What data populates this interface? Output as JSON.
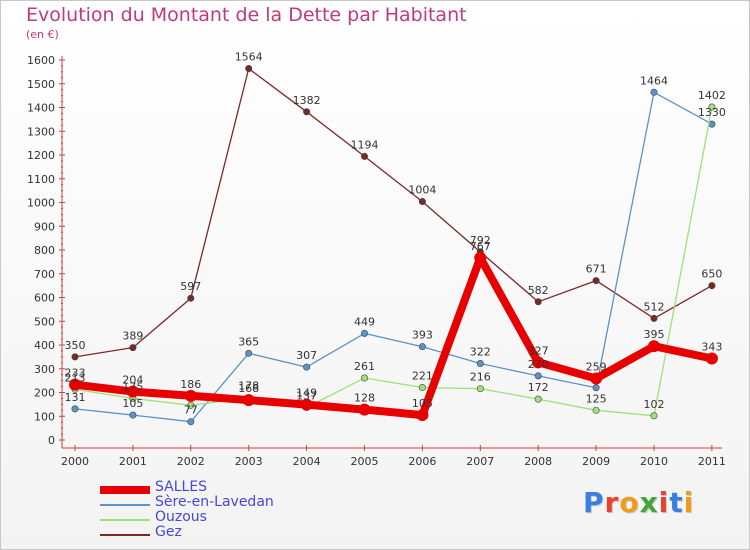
{
  "title": "Evolution du Montant de la Dette par Habitant",
  "unit": "(en €)",
  "brand": {
    "text": "Proxiti",
    "letter_colors": [
      "#3a7ee0",
      "#e8412c",
      "#f29a1b",
      "#3fa63a",
      "#e8412c",
      "#3a7ee0",
      "#f29a1b"
    ]
  },
  "chart_data": {
    "type": "line",
    "x": [
      "2000",
      "2001",
      "2002",
      "2003",
      "2004",
      "2005",
      "2006",
      "2007",
      "2008",
      "2009",
      "2010",
      "2011"
    ],
    "ylim": [
      0,
      1600
    ],
    "yticks": [
      0,
      100,
      200,
      300,
      400,
      500,
      600,
      700,
      800,
      900,
      1000,
      1100,
      1200,
      1300,
      1400,
      1500,
      1600
    ],
    "grid": false,
    "legend_position": "bottom-left",
    "series": [
      {
        "name": "Gez",
        "color": "#7a2828",
        "values": [
          350,
          389,
          597,
          1564,
          1382,
          1194,
          1004,
          792,
          582,
          671,
          512,
          650
        ]
      },
      {
        "name": "Sère-en-Lavedan",
        "color": "#5b93c8",
        "values": [
          131,
          105,
          77,
          365,
          307,
          449,
          393,
          322,
          270,
          220,
          1464,
          1330
        ]
      },
      {
        "name": "Ouzous",
        "color": "#9fe07a",
        "values": [
          213,
          175,
          146,
          178,
          137,
          261,
          221,
          216,
          172,
          125,
          102,
          1402
        ]
      },
      {
        "name": "SALLES",
        "color": "#e80000",
        "values": [
          233,
          204,
          186,
          168,
          149,
          128,
          105,
          767,
          327,
          259,
          395,
          343
        ]
      }
    ],
    "data_labels": [
      [
        "350",
        "389",
        "597",
        "1564",
        "1382",
        "1194",
        "1004",
        "792",
        "582",
        "671",
        "512",
        "650"
      ],
      [
        "131",
        "105",
        "77",
        "365",
        "307",
        "449",
        "393",
        "322",
        "270",
        "",
        "1464",
        "1330"
      ],
      [
        "213",
        "175",
        "",
        "178",
        "137",
        "261",
        "221",
        "216",
        "172",
        "125",
        "102",
        "1402"
      ],
      [
        "233",
        "204",
        "186",
        "168",
        "149",
        "128",
        "105",
        "767",
        "327",
        "259",
        "395",
        "343"
      ]
    ],
    "legend_order": [
      "SALLES",
      "Sère-en-Lavedan",
      "Ouzous",
      "Gez"
    ]
  }
}
